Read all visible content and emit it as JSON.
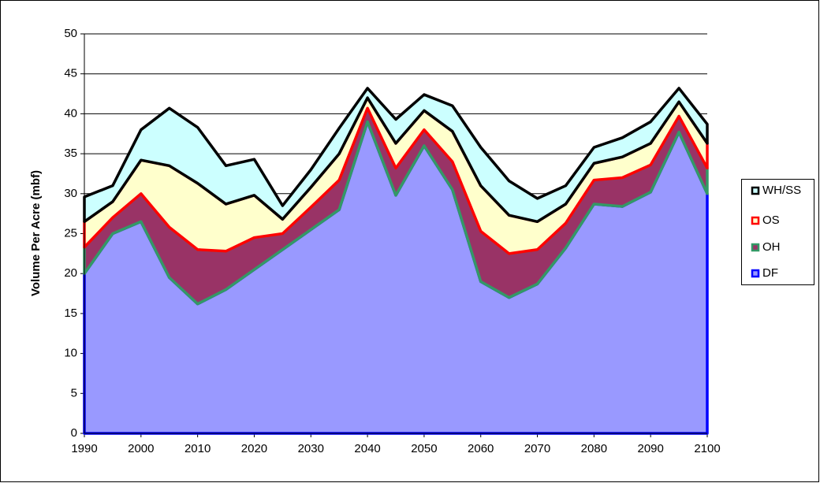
{
  "chart_data": {
    "type": "stacked_area",
    "y_label": "Volume Per Acre (mbf)",
    "x": [
      1990,
      1995,
      2000,
      2005,
      2010,
      2015,
      2020,
      2025,
      2030,
      2035,
      2040,
      2045,
      2050,
      2055,
      2060,
      2065,
      2070,
      2075,
      2080,
      2085,
      2090,
      2095,
      2100
    ],
    "xlim": [
      1990,
      2100
    ],
    "xticks": [
      1990,
      2000,
      2010,
      2020,
      2030,
      2040,
      2050,
      2060,
      2070,
      2080,
      2090,
      2100
    ],
    "ylim": [
      0,
      50
    ],
    "yticks": [
      0,
      5,
      10,
      15,
      20,
      25,
      30,
      35,
      40,
      45,
      50
    ],
    "grid": true,
    "legend": "right",
    "series": [
      {
        "name": "DF",
        "color": "#9999ff",
        "border_color": "#0000ff",
        "values": [
          20,
          25,
          26.5,
          19.5,
          16.2,
          18,
          20.5,
          23,
          25.5,
          28,
          39,
          29.8,
          36,
          30.5,
          19,
          17,
          18.7,
          23.2,
          28.7,
          28.4,
          30.2,
          37.7,
          30
        ]
      },
      {
        "name": "OH",
        "color": "#993366",
        "border_color": "#339966",
        "values": [
          3.3,
          2,
          3.5,
          6.3,
          6.8,
          4.8,
          4,
          2,
          2.8,
          3.7,
          1.7,
          3.4,
          2,
          3.5,
          6.3,
          5.5,
          4.3,
          3.1,
          3,
          3.6,
          3.4,
          2,
          3.2
        ]
      },
      {
        "name": "OS",
        "color": "#ffffcc",
        "border_color": "#ff0000",
        "values": [
          3.2,
          2,
          4.2,
          7.7,
          8.3,
          5.9,
          5.3,
          1.8,
          2.5,
          3.3,
          1.3,
          3.1,
          2.4,
          3.8,
          5.7,
          4.8,
          3.5,
          2.4,
          2.1,
          2.6,
          2.7,
          1.8,
          3.1
        ]
      },
      {
        "name": "WH/SS",
        "color": "#ccffff",
        "border_color": "#000000",
        "values": [
          3.1,
          2,
          3.8,
          7.2,
          7,
          4.8,
          4.5,
          1.7,
          2.2,
          3.2,
          1.2,
          3,
          2,
          3.2,
          4.8,
          4.3,
          2.9,
          2.3,
          2,
          2.4,
          2.7,
          1.7,
          2.4
        ]
      }
    ]
  }
}
